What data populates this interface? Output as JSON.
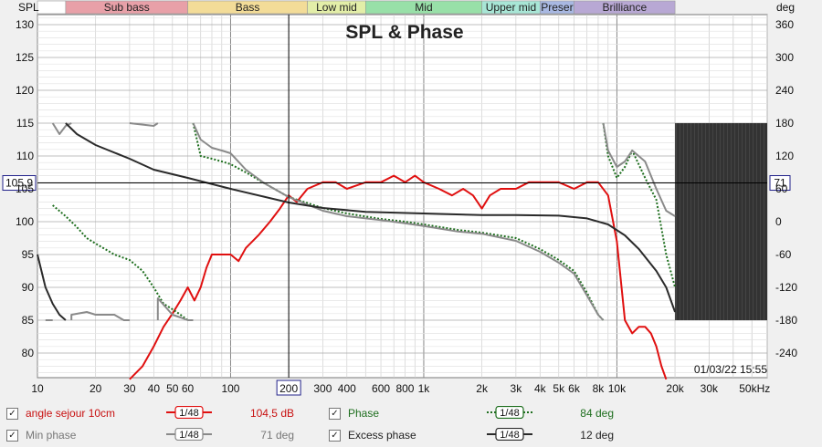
{
  "chart_data": {
    "type": "line",
    "title": "SPL & Phase",
    "left_axis": {
      "label": "SPL",
      "min": 75,
      "max": 133,
      "ticks": [
        80,
        85,
        90,
        95,
        100,
        105,
        110,
        115,
        120,
        125,
        130
      ]
    },
    "right_axis": {
      "label": "deg",
      "ticks": [
        -240,
        -180,
        -120,
        -60,
        0,
        60,
        120,
        180,
        240,
        300,
        360
      ]
    },
    "x_axis": {
      "scale": "log",
      "min": 10,
      "max": 60000,
      "tick_labels": [
        "10",
        "20",
        "30",
        "40",
        "50",
        "60",
        "100",
        "200",
        "300",
        "400",
        "600",
        "800",
        "1k",
        "2k",
        "3k",
        "4k",
        "5k",
        "6k",
        "8k",
        "10k",
        "20k",
        "30k",
        "50kHz"
      ],
      "tick_values": [
        10,
        20,
        30,
        40,
        50,
        60,
        100,
        200,
        300,
        400,
        600,
        800,
        1000,
        2000,
        3000,
        4000,
        5000,
        6000,
        8000,
        10000,
        20000,
        30000,
        50000
      ]
    },
    "bands": [
      {
        "name": "",
        "from": 10,
        "to": 14,
        "color": "#ffffff"
      },
      {
        "name": "Sub bass",
        "from": 14,
        "to": 60,
        "color": "#e8a0a8"
      },
      {
        "name": "Bass",
        "from": 60,
        "to": 250,
        "color": "#f3dc98"
      },
      {
        "name": "Low mid",
        "from": 250,
        "to": 500,
        "color": "#e3eea8"
      },
      {
        "name": "Mid",
        "from": 500,
        "to": 2000,
        "color": "#98e0a8"
      },
      {
        "name": "Upper mid",
        "from": 2000,
        "to": 4000,
        "color": "#a8e6d6"
      },
      {
        "name": "Preser",
        "from": 4000,
        "to": 6000,
        "color": "#a8b8e2"
      },
      {
        "name": "Brilliance",
        "from": 6000,
        "to": 20000,
        "color": "#b8a8d4"
      }
    ],
    "cursor": {
      "x_label": "200",
      "y_label": "105,9",
      "right_label": "71",
      "x": 200,
      "y": 105.9
    },
    "timestamp": "01/03/22 15:55",
    "series": [
      {
        "name": "angle sejour 10cm",
        "axis": "spl",
        "color": "#e01010",
        "points": [
          [
            30,
            76
          ],
          [
            35,
            78
          ],
          [
            40,
            81
          ],
          [
            45,
            84
          ],
          [
            50,
            86
          ],
          [
            55,
            88
          ],
          [
            60,
            90
          ],
          [
            65,
            88
          ],
          [
            70,
            90
          ],
          [
            75,
            93
          ],
          [
            80,
            95
          ],
          [
            90,
            95
          ],
          [
            100,
            95
          ],
          [
            110,
            94
          ],
          [
            120,
            96
          ],
          [
            140,
            98
          ],
          [
            160,
            100
          ],
          [
            180,
            102
          ],
          [
            200,
            104
          ],
          [
            220,
            103
          ],
          [
            250,
            105
          ],
          [
            300,
            106
          ],
          [
            350,
            106
          ],
          [
            400,
            105
          ],
          [
            500,
            106
          ],
          [
            600,
            106
          ],
          [
            700,
            107
          ],
          [
            800,
            106
          ],
          [
            900,
            107
          ],
          [
            1000,
            106
          ],
          [
            1200,
            105
          ],
          [
            1400,
            104
          ],
          [
            1600,
            105
          ],
          [
            1800,
            104
          ],
          [
            2000,
            102
          ],
          [
            2200,
            104
          ],
          [
            2500,
            105
          ],
          [
            3000,
            105
          ],
          [
            3500,
            106
          ],
          [
            4000,
            106
          ],
          [
            5000,
            106
          ],
          [
            6000,
            105
          ],
          [
            7000,
            106
          ],
          [
            8000,
            106
          ],
          [
            9000,
            104
          ],
          [
            10000,
            97
          ],
          [
            11000,
            85
          ],
          [
            12000,
            83
          ],
          [
            13000,
            84
          ],
          [
            14000,
            84
          ],
          [
            15000,
            83
          ],
          [
            16000,
            81
          ],
          [
            17000,
            78
          ],
          [
            18000,
            76
          ]
        ]
      },
      {
        "name": "Phase",
        "axis": "phase",
        "color": "#1e6e1e",
        "dash": "2,2",
        "points": [
          [
            12,
            30
          ],
          [
            14,
            10
          ],
          [
            16,
            -10
          ],
          [
            18,
            -30
          ],
          [
            20,
            -40
          ],
          [
            25,
            -60
          ],
          [
            30,
            -70
          ],
          [
            35,
            -90
          ],
          [
            40,
            -120
          ],
          [
            45,
            -150
          ],
          [
            50,
            -160
          ],
          [
            55,
            -170
          ],
          [
            60,
            -180
          ],
          [
            64,
            180
          ],
          [
            70,
            120
          ],
          [
            80,
            115
          ],
          [
            90,
            110
          ],
          [
            100,
            105
          ],
          [
            120,
            90
          ],
          [
            150,
            70
          ],
          [
            200,
            45
          ],
          [
            300,
            25
          ],
          [
            400,
            15
          ],
          [
            600,
            5
          ],
          [
            800,
            0
          ],
          [
            1000,
            -5
          ],
          [
            1500,
            -15
          ],
          [
            2000,
            -20
          ],
          [
            3000,
            -30
          ],
          [
            4000,
            -50
          ],
          [
            5000,
            -70
          ],
          [
            6000,
            -90
          ],
          [
            7000,
            -130
          ],
          [
            8000,
            -170
          ],
          [
            8500,
            180
          ],
          [
            9000,
            120
          ],
          [
            10000,
            80
          ],
          [
            11000,
            100
          ],
          [
            12000,
            130
          ],
          [
            14000,
            80
          ],
          [
            16000,
            40
          ],
          [
            18000,
            -60
          ],
          [
            20000,
            -120
          ]
        ]
      },
      {
        "name": "Min phase",
        "axis": "phase",
        "color": "#8a8a8a",
        "points": [
          [
            11,
            -180
          ],
          [
            12,
            180
          ],
          [
            13,
            160
          ],
          [
            14,
            175
          ],
          [
            15,
            -170
          ],
          [
            18,
            -165
          ],
          [
            20,
            -170
          ],
          [
            25,
            -170
          ],
          [
            28,
            -180
          ],
          [
            30,
            180
          ],
          [
            40,
            175
          ],
          [
            42,
            -140
          ],
          [
            50,
            -170
          ],
          [
            55,
            -175
          ],
          [
            60,
            -180
          ],
          [
            64,
            180
          ],
          [
            70,
            150
          ],
          [
            80,
            135
          ],
          [
            90,
            130
          ],
          [
            100,
            125
          ],
          [
            120,
            95
          ],
          [
            150,
            70
          ],
          [
            200,
            45
          ],
          [
            300,
            20
          ],
          [
            400,
            10
          ],
          [
            600,
            3
          ],
          [
            800,
            -3
          ],
          [
            1000,
            -8
          ],
          [
            1500,
            -18
          ],
          [
            2000,
            -22
          ],
          [
            3000,
            -35
          ],
          [
            4000,
            -55
          ],
          [
            5000,
            -75
          ],
          [
            6000,
            -95
          ],
          [
            7000,
            -135
          ],
          [
            8000,
            -170
          ],
          [
            8500,
            180
          ],
          [
            9000,
            130
          ],
          [
            10000,
            100
          ],
          [
            11000,
            110
          ],
          [
            12000,
            130
          ],
          [
            14000,
            110
          ],
          [
            16000,
            60
          ],
          [
            18000,
            20
          ],
          [
            20000,
            10
          ]
        ]
      },
      {
        "name": "Excess phase",
        "axis": "phase",
        "color": "#2a2a2a",
        "points": [
          [
            10,
            -60
          ],
          [
            11,
            -120
          ],
          [
            12,
            -150
          ],
          [
            13,
            -170
          ],
          [
            14,
            180
          ],
          [
            16,
            160
          ],
          [
            20,
            140
          ],
          [
            30,
            115
          ],
          [
            40,
            95
          ],
          [
            60,
            80
          ],
          [
            100,
            60
          ],
          [
            200,
            35
          ],
          [
            300,
            25
          ],
          [
            500,
            18
          ],
          [
            1000,
            15
          ],
          [
            2000,
            12
          ],
          [
            3000,
            12
          ],
          [
            5000,
            11
          ],
          [
            7000,
            6
          ],
          [
            9000,
            -5
          ],
          [
            11000,
            -25
          ],
          [
            13000,
            -50
          ],
          [
            16000,
            -90
          ],
          [
            18000,
            -120
          ],
          [
            20000,
            -165
          ]
        ]
      }
    ],
    "legend": [
      {
        "name": "angle sejour 10cm",
        "smoothing": "1/48",
        "value": "104,5 dB",
        "color": "#e01010"
      },
      {
        "name": "Phase",
        "smoothing": "1/48",
        "value": "84 deg",
        "color": "#1e6e1e"
      },
      {
        "name": "Min phase",
        "smoothing": "1/48",
        "value": "71 deg",
        "color": "#8a8a8a"
      },
      {
        "name": "Excess phase",
        "smoothing": "1/48",
        "value": "12 deg",
        "color": "#2a2a2a"
      }
    ],
    "grid": true
  }
}
